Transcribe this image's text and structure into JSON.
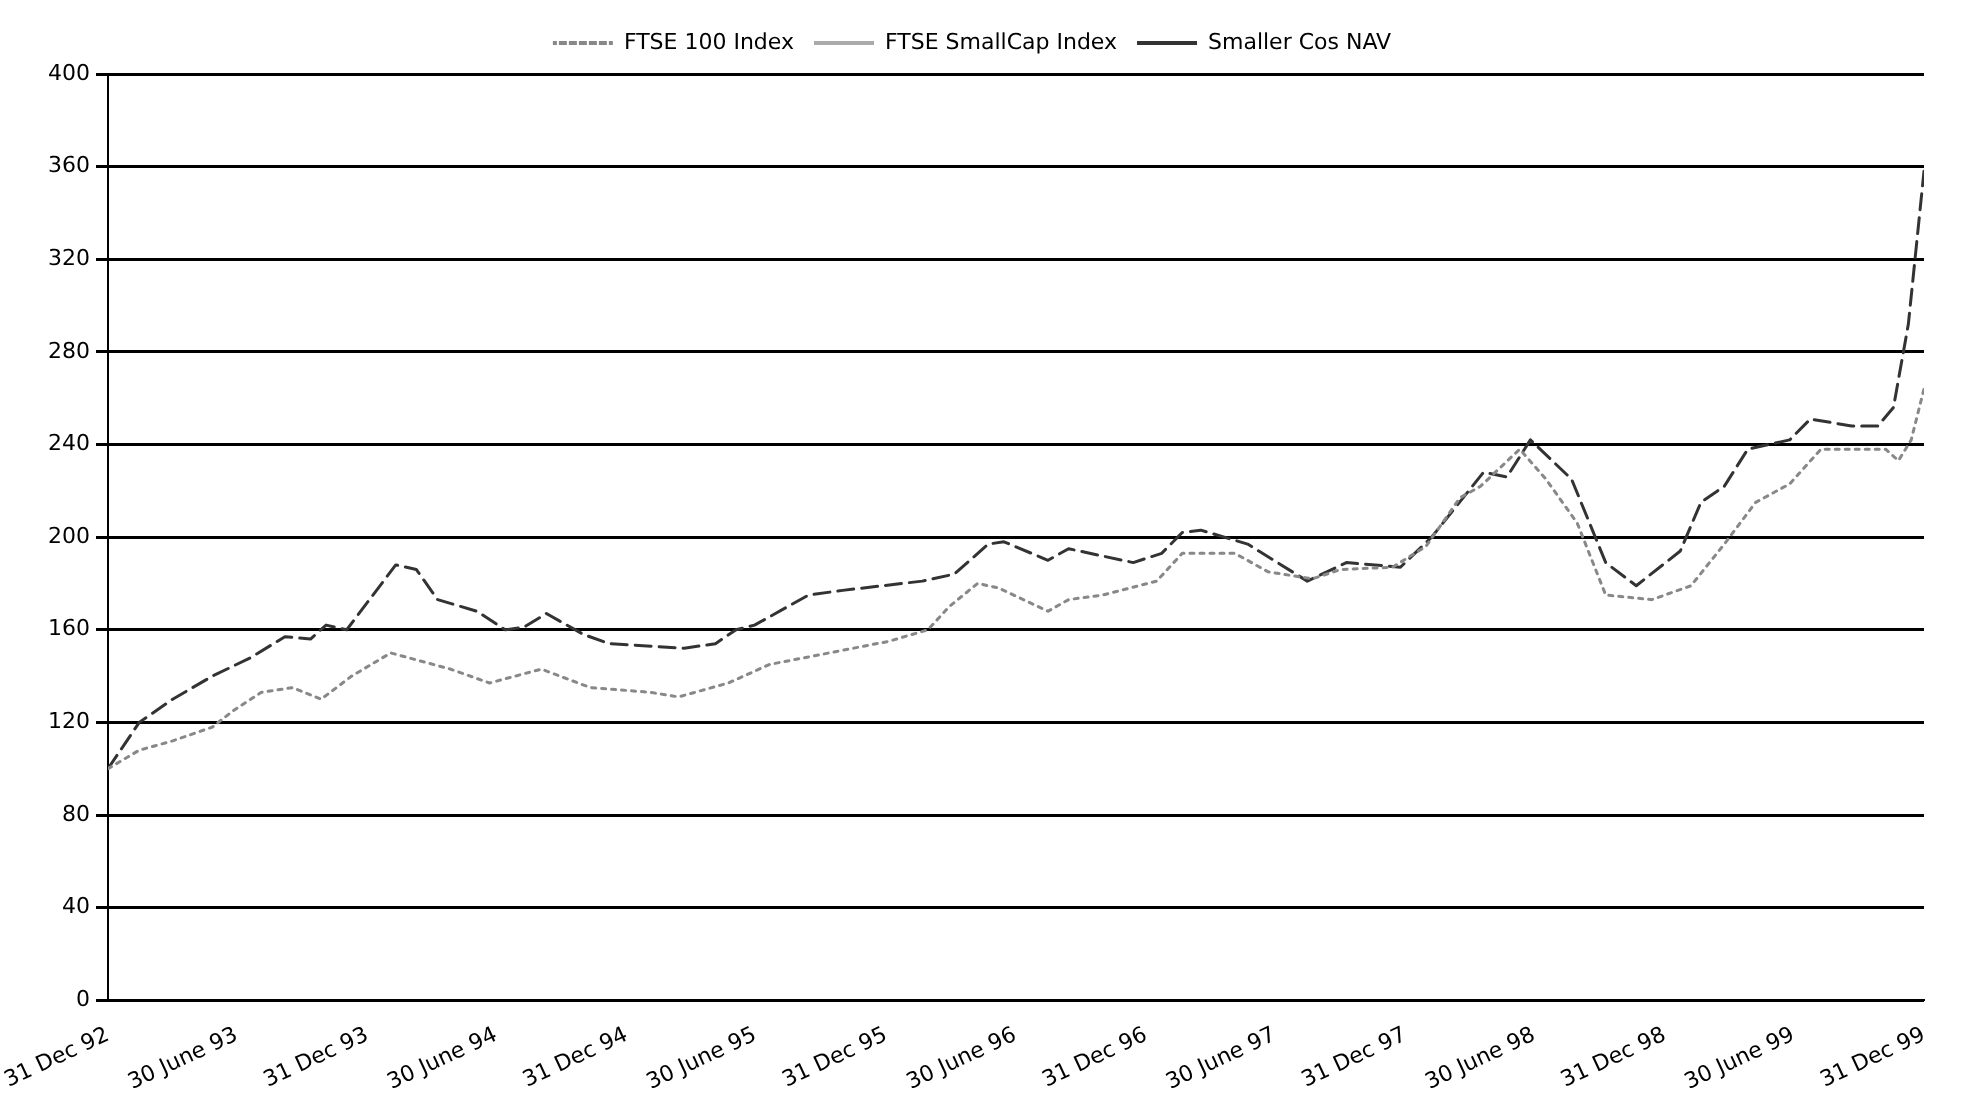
{
  "chart_data": {
    "type": "line",
    "legend": "top",
    "grid": "y",
    "marker": "none",
    "xlim": [
      "1992-12-31",
      "1999-12-31"
    ],
    "xticks": [
      {
        "value": "1992-12-31",
        "label": "31 Dec 92"
      },
      {
        "value": "1993-06-30",
        "label": "30 June 93"
      },
      {
        "value": "1993-12-31",
        "label": "31 Dec 93"
      },
      {
        "value": "1994-06-30",
        "label": "30 June 94"
      },
      {
        "value": "1994-12-31",
        "label": "31 Dec 94"
      },
      {
        "value": "1995-06-30",
        "label": "30 June 95"
      },
      {
        "value": "1995-12-31",
        "label": "31 Dec 95"
      },
      {
        "value": "1996-06-30",
        "label": "30 June 96"
      },
      {
        "value": "1996-12-31",
        "label": "31 Dec 96"
      },
      {
        "value": "1997-06-30",
        "label": "30 June 97"
      },
      {
        "value": "1997-12-31",
        "label": "31 Dec 97"
      },
      {
        "value": "1998-06-30",
        "label": "30 June 98"
      },
      {
        "value": "1998-12-31",
        "label": "31 Dec 98"
      },
      {
        "value": "1999-06-30",
        "label": "30 June 99"
      },
      {
        "value": "1999-12-31",
        "label": "31 Dec 99"
      }
    ],
    "ylim": [
      0,
      400
    ],
    "yticks": [
      0,
      40,
      80,
      120,
      160,
      200,
      240,
      280,
      320,
      360,
      400
    ],
    "series": [
      {
        "name": "FTSE 100 Index",
        "color": "#888888",
        "line_style": "dotted",
        "x": [
          "1992-12-31",
          "1993-02-13",
          "1993-04-01",
          "1993-05-27",
          "1993-06-25",
          "1993-08-04",
          "1993-09-17",
          "1993-10-27",
          "1993-12-09",
          "1994-02-02",
          "1994-04-27",
          "1994-06-21",
          "1994-09-02",
          "1994-11-10",
          "1995-02-02",
          "1995-03-14",
          "1995-05-23",
          "1995-07-20",
          "1995-10-12",
          "1996-01-04",
          "1996-02-28",
          "1996-03-29",
          "1996-05-08",
          "1996-06-07",
          "1996-08-15",
          "1996-09-13",
          "1996-10-31",
          "1997-01-15",
          "1997-02-20",
          "1997-05-05",
          "1997-06-21",
          "1997-08-22",
          "1997-10-01",
          "1997-12-13",
          "1998-01-29",
          "1998-03-18",
          "1998-04-16",
          "1998-06-10",
          "1998-07-17",
          "1998-08-30",
          "1998-10-09",
          "1998-12-13",
          "1999-02-06",
          "1999-03-25",
          "1999-05-08",
          "1999-06-25",
          "1999-08-08",
          "1999-11-07",
          "1999-11-25",
          "1999-12-13",
          "1999-12-31"
        ],
        "values": [
          100,
          108,
          112,
          118,
          125,
          133,
          135,
          130,
          140,
          150,
          143,
          137,
          143,
          135,
          133,
          131,
          137,
          145,
          150,
          155,
          160,
          170,
          180,
          178,
          168,
          173,
          175,
          181,
          193,
          193,
          185,
          182,
          186,
          187,
          196,
          217,
          222,
          238,
          225,
          206,
          175,
          173,
          179,
          197,
          215,
          223,
          238,
          238,
          233,
          242,
          264
        ]
      },
      {
        "name": "FTSE SmallCap Index",
        "color": "#aaaaaa",
        "line_style": "solid"
      },
      {
        "name": "Smaller Cos NAV",
        "color": "#333333",
        "line_style": "dashed",
        "x": [
          "1992-12-31",
          "1993-02-13",
          "1993-04-01",
          "1993-05-27",
          "1993-07-20",
          "1993-09-06",
          "1993-10-12",
          "1993-11-03",
          "1993-12-02",
          "1994-02-09",
          "1994-03-10",
          "1994-04-09",
          "1994-06-03",
          "1994-07-13",
          "1994-08-08",
          "1994-09-09",
          "1994-10-31",
          "1994-12-06",
          "1995-03-22",
          "1995-05-05",
          "1995-06-03",
          "1995-06-29",
          "1995-09-13",
          "1995-10-31",
          "1996-02-20",
          "1996-04-05",
          "1996-05-23",
          "1996-06-14",
          "1996-08-15",
          "1996-09-13",
          "1996-12-13",
          "1997-01-22",
          "1997-02-20",
          "1997-03-18",
          "1997-05-23",
          "1997-08-15",
          "1997-10-09",
          "1997-12-24",
          "1998-02-06",
          "1998-04-20",
          "1998-05-23",
          "1998-06-25",
          "1998-08-22",
          "1998-10-09",
          "1998-11-21",
          "1999-01-22",
          "1999-02-20",
          "1999-03-25",
          "1999-04-27",
          "1999-06-25",
          "1999-07-24",
          "1999-09-20",
          "1999-10-27",
          "1999-11-18",
          "1999-12-09",
          "1999-12-31"
        ],
        "values": [
          100,
          120,
          130,
          140,
          148,
          157,
          156,
          162,
          160,
          188,
          186,
          173,
          168,
          160,
          161,
          167,
          158,
          154,
          152,
          154,
          160,
          162,
          175,
          177,
          181,
          184,
          197,
          198,
          190,
          195,
          189,
          193,
          202,
          203,
          197,
          181,
          189,
          187,
          200,
          228,
          226,
          242,
          225,
          189,
          179,
          194,
          215,
          222,
          238,
          242,
          251,
          248,
          248,
          256,
          292,
          358
        ]
      }
    ]
  }
}
